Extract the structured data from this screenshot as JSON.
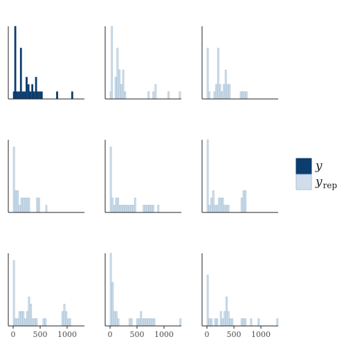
{
  "chart_data": {
    "type": "bar",
    "title": "",
    "xlabel": "",
    "ylabel": "",
    "xlim": [
      -90,
      1320
    ],
    "x_ticks": [
      {
        "value": 0,
        "label": "0"
      },
      {
        "value": 500,
        "label": "500"
      },
      {
        "value": 1000,
        "label": "1000"
      }
    ],
    "grid": false,
    "legend_position": "right",
    "legend": [
      {
        "key": "y",
        "label": "y",
        "subscript": "",
        "color": "#0b3d6e"
      },
      {
        "key": "yrep",
        "label": "y",
        "subscript": "rep",
        "color": "#cfdeea"
      }
    ],
    "colors": {
      "y_fill": "#0b3d6e",
      "y_stroke": "#0b3d6e",
      "yrep_fill": "#cfdeea",
      "yrep_stroke": "#a9c1d6"
    },
    "bin_width": 36,
    "panels": [
      {
        "series": "y",
        "ymax": 10,
        "bins": [
          {
            "x": 0,
            "count": 1
          },
          {
            "x": 25,
            "count": 10
          },
          {
            "x": 60,
            "count": 1
          },
          {
            "x": 95,
            "count": 1
          },
          {
            "x": 130,
            "count": 7
          },
          {
            "x": 165,
            "count": 1
          },
          {
            "x": 200,
            "count": 1
          },
          {
            "x": 235,
            "count": 3
          },
          {
            "x": 270,
            "count": 2
          },
          {
            "x": 305,
            "count": 1
          },
          {
            "x": 340,
            "count": 2
          },
          {
            "x": 375,
            "count": 1
          },
          {
            "x": 410,
            "count": 3
          },
          {
            "x": 445,
            "count": 1
          },
          {
            "x": 480,
            "count": 1
          },
          {
            "x": 515,
            "count": 1
          },
          {
            "x": 800,
            "count": 1
          },
          {
            "x": 1080,
            "count": 1
          }
        ]
      },
      {
        "series": "yrep",
        "ymax": 10,
        "bins": [
          {
            "x": 0,
            "count": 1
          },
          {
            "x": 20,
            "count": 10
          },
          {
            "x": 90,
            "count": 3
          },
          {
            "x": 125,
            "count": 7
          },
          {
            "x": 160,
            "count": 4
          },
          {
            "x": 195,
            "count": 2
          },
          {
            "x": 230,
            "count": 4
          },
          {
            "x": 265,
            "count": 1
          },
          {
            "x": 700,
            "count": 1
          },
          {
            "x": 790,
            "count": 1
          },
          {
            "x": 830,
            "count": 2
          },
          {
            "x": 1070,
            "count": 1
          },
          {
            "x": 1280,
            "count": 1
          }
        ]
      },
      {
        "series": "yrep",
        "ymax": 10,
        "bins": [
          {
            "x": 0,
            "count": 7
          },
          {
            "x": 30,
            "count": 1
          },
          {
            "x": 125,
            "count": 1
          },
          {
            "x": 160,
            "count": 2
          },
          {
            "x": 195,
            "count": 7
          },
          {
            "x": 230,
            "count": 2
          },
          {
            "x": 265,
            "count": 1
          },
          {
            "x": 300,
            "count": 2
          },
          {
            "x": 335,
            "count": 4
          },
          {
            "x": 370,
            "count": 2
          },
          {
            "x": 405,
            "count": 2
          },
          {
            "x": 615,
            "count": 1
          },
          {
            "x": 650,
            "count": 1
          },
          {
            "x": 685,
            "count": 1
          },
          {
            "x": 720,
            "count": 1
          }
        ]
      },
      {
        "series": "yrep",
        "ymax": 10,
        "bins": [
          {
            "x": 0,
            "count": 9
          },
          {
            "x": 35,
            "count": 3
          },
          {
            "x": 70,
            "count": 3
          },
          {
            "x": 105,
            "count": 1
          },
          {
            "x": 140,
            "count": 2
          },
          {
            "x": 175,
            "count": 2
          },
          {
            "x": 210,
            "count": 2
          },
          {
            "x": 245,
            "count": 2
          },
          {
            "x": 280,
            "count": 2
          },
          {
            "x": 430,
            "count": 2
          },
          {
            "x": 465,
            "count": 2
          },
          {
            "x": 600,
            "count": 1
          }
        ]
      },
      {
        "series": "yrep",
        "ymax": 10,
        "bins": [
          {
            "x": 0,
            "count": 9
          },
          {
            "x": 30,
            "count": 2
          },
          {
            "x": 65,
            "count": 1
          },
          {
            "x": 100,
            "count": 2
          },
          {
            "x": 135,
            "count": 2
          },
          {
            "x": 170,
            "count": 1
          },
          {
            "x": 205,
            "count": 1
          },
          {
            "x": 240,
            "count": 1
          },
          {
            "x": 275,
            "count": 1
          },
          {
            "x": 310,
            "count": 1
          },
          {
            "x": 345,
            "count": 1
          },
          {
            "x": 380,
            "count": 1
          },
          {
            "x": 415,
            "count": 1
          },
          {
            "x": 450,
            "count": 2
          },
          {
            "x": 610,
            "count": 1
          },
          {
            "x": 645,
            "count": 1
          },
          {
            "x": 680,
            "count": 1
          },
          {
            "x": 715,
            "count": 1
          },
          {
            "x": 750,
            "count": 1
          },
          {
            "x": 785,
            "count": 1
          },
          {
            "x": 880,
            "count": 1
          }
        ]
      },
      {
        "series": "yrep",
        "ymax": 10,
        "bins": [
          {
            "x": 0,
            "count": 10
          },
          {
            "x": 35,
            "count": 1
          },
          {
            "x": 70,
            "count": 2
          },
          {
            "x": 105,
            "count": 3
          },
          {
            "x": 140,
            "count": 1
          },
          {
            "x": 175,
            "count": 1
          },
          {
            "x": 210,
            "count": 2
          },
          {
            "x": 245,
            "count": 2
          },
          {
            "x": 280,
            "count": 2
          },
          {
            "x": 315,
            "count": 1
          },
          {
            "x": 350,
            "count": 1
          },
          {
            "x": 385,
            "count": 1
          },
          {
            "x": 630,
            "count": 2
          },
          {
            "x": 665,
            "count": 3
          },
          {
            "x": 700,
            "count": 3
          }
        ]
      },
      {
        "series": "yrep",
        "ymax": 10,
        "bins": [
          {
            "x": 0,
            "count": 9
          },
          {
            "x": 35,
            "count": 1
          },
          {
            "x": 70,
            "count": 1
          },
          {
            "x": 105,
            "count": 2
          },
          {
            "x": 140,
            "count": 2
          },
          {
            "x": 175,
            "count": 2
          },
          {
            "x": 210,
            "count": 1
          },
          {
            "x": 245,
            "count": 2
          },
          {
            "x": 280,
            "count": 4
          },
          {
            "x": 315,
            "count": 3
          },
          {
            "x": 350,
            "count": 1
          },
          {
            "x": 385,
            "count": 1
          },
          {
            "x": 420,
            "count": 1
          },
          {
            "x": 550,
            "count": 1
          },
          {
            "x": 585,
            "count": 1
          },
          {
            "x": 900,
            "count": 2
          },
          {
            "x": 935,
            "count": 3
          },
          {
            "x": 970,
            "count": 2
          },
          {
            "x": 1005,
            "count": 1
          },
          {
            "x": 1040,
            "count": 1
          }
        ]
      },
      {
        "series": "yrep",
        "ymax": 10,
        "bins": [
          {
            "x": 0,
            "count": 10
          },
          {
            "x": 35,
            "count": 6
          },
          {
            "x": 70,
            "count": 2
          },
          {
            "x": 105,
            "count": 2
          },
          {
            "x": 140,
            "count": 1
          },
          {
            "x": 350,
            "count": 1
          },
          {
            "x": 385,
            "count": 1
          },
          {
            "x": 490,
            "count": 1
          },
          {
            "x": 525,
            "count": 1
          },
          {
            "x": 560,
            "count": 2
          },
          {
            "x": 595,
            "count": 1
          },
          {
            "x": 630,
            "count": 1
          },
          {
            "x": 665,
            "count": 1
          },
          {
            "x": 700,
            "count": 1
          },
          {
            "x": 735,
            "count": 1
          },
          {
            "x": 770,
            "count": 1
          },
          {
            "x": 805,
            "count": 1
          },
          {
            "x": 1290,
            "count": 1
          }
        ]
      },
      {
        "series": "yrep",
        "ymax": 10,
        "bins": [
          {
            "x": 0,
            "count": 7
          },
          {
            "x": 35,
            "count": 1
          },
          {
            "x": 70,
            "count": 1
          },
          {
            "x": 140,
            "count": 1
          },
          {
            "x": 175,
            "count": 1
          },
          {
            "x": 245,
            "count": 2
          },
          {
            "x": 280,
            "count": 1
          },
          {
            "x": 315,
            "count": 2
          },
          {
            "x": 350,
            "count": 4
          },
          {
            "x": 385,
            "count": 2
          },
          {
            "x": 420,
            "count": 1
          },
          {
            "x": 455,
            "count": 1
          },
          {
            "x": 630,
            "count": 1
          },
          {
            "x": 665,
            "count": 1
          },
          {
            "x": 700,
            "count": 1
          },
          {
            "x": 805,
            "count": 1
          },
          {
            "x": 945,
            "count": 1
          },
          {
            "x": 1290,
            "count": 1
          }
        ]
      }
    ]
  }
}
